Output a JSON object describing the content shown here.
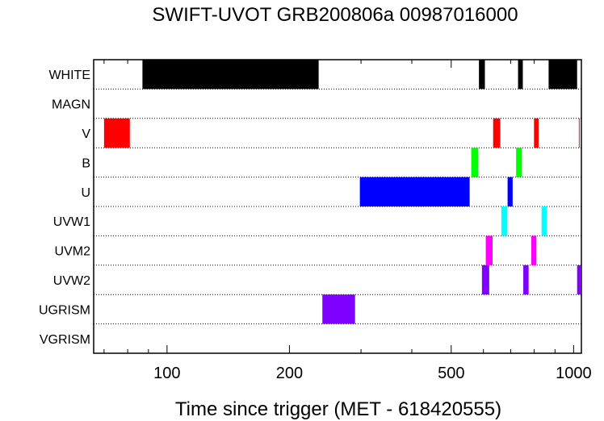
{
  "chart_data": {
    "type": "bar",
    "title": "SWIFT-UVOT GRB200806a 00987016000",
    "xlabel": "Time since trigger (MET - 618420555)",
    "x_scale": "log",
    "xlim": [
      66,
      1045
    ],
    "x_ticks": [
      100,
      200,
      500,
      1000
    ],
    "x_tick_labels": [
      "100",
      "200",
      "500",
      "1000"
    ],
    "categories": [
      "WHITE",
      "MAGN",
      "V",
      "B",
      "U",
      "UVW1",
      "UVM2",
      "UVW2",
      "UGRISM",
      "VGRISM"
    ],
    "series": [
      {
        "category": "WHITE",
        "color": "#000000",
        "intervals": [
          [
            87,
            236
          ],
          [
            585,
            605
          ],
          [
            730,
            750
          ],
          [
            868,
            1020
          ]
        ]
      },
      {
        "category": "MAGN",
        "color": "#000000",
        "intervals": []
      },
      {
        "category": "V",
        "color": "#ff0000",
        "intervals": [
          [
            70,
            81
          ],
          [
            634,
            660
          ],
          [
            799,
            820
          ],
          [
            1030,
            1034
          ]
        ]
      },
      {
        "category": "B",
        "color": "#00ff00",
        "intervals": [
          [
            560,
            583
          ],
          [
            722,
            746
          ]
        ]
      },
      {
        "category": "U",
        "color": "#0000ff",
        "intervals": [
          [
            298,
            555
          ],
          [
            688,
            708
          ]
        ]
      },
      {
        "category": "UVW1",
        "color": "#00ffff",
        "intervals": [
          [
            664,
            687
          ],
          [
            834,
            858
          ]
        ]
      },
      {
        "category": "UVM2",
        "color": "#ff00ff",
        "intervals": [
          [
            608,
            632
          ],
          [
            787,
            810
          ]
        ]
      },
      {
        "category": "UVW2",
        "color": "#8000ff",
        "intervals": [
          [
            595,
            620
          ],
          [
            752,
            775
          ],
          [
            1020,
            1040
          ]
        ]
      },
      {
        "category": "UGRISM",
        "color": "#8000ff",
        "intervals": [
          [
            241,
            290
          ]
        ]
      },
      {
        "category": "VGRISM",
        "color": "#8000ff",
        "intervals": []
      }
    ],
    "grid": "dotted row separators"
  }
}
